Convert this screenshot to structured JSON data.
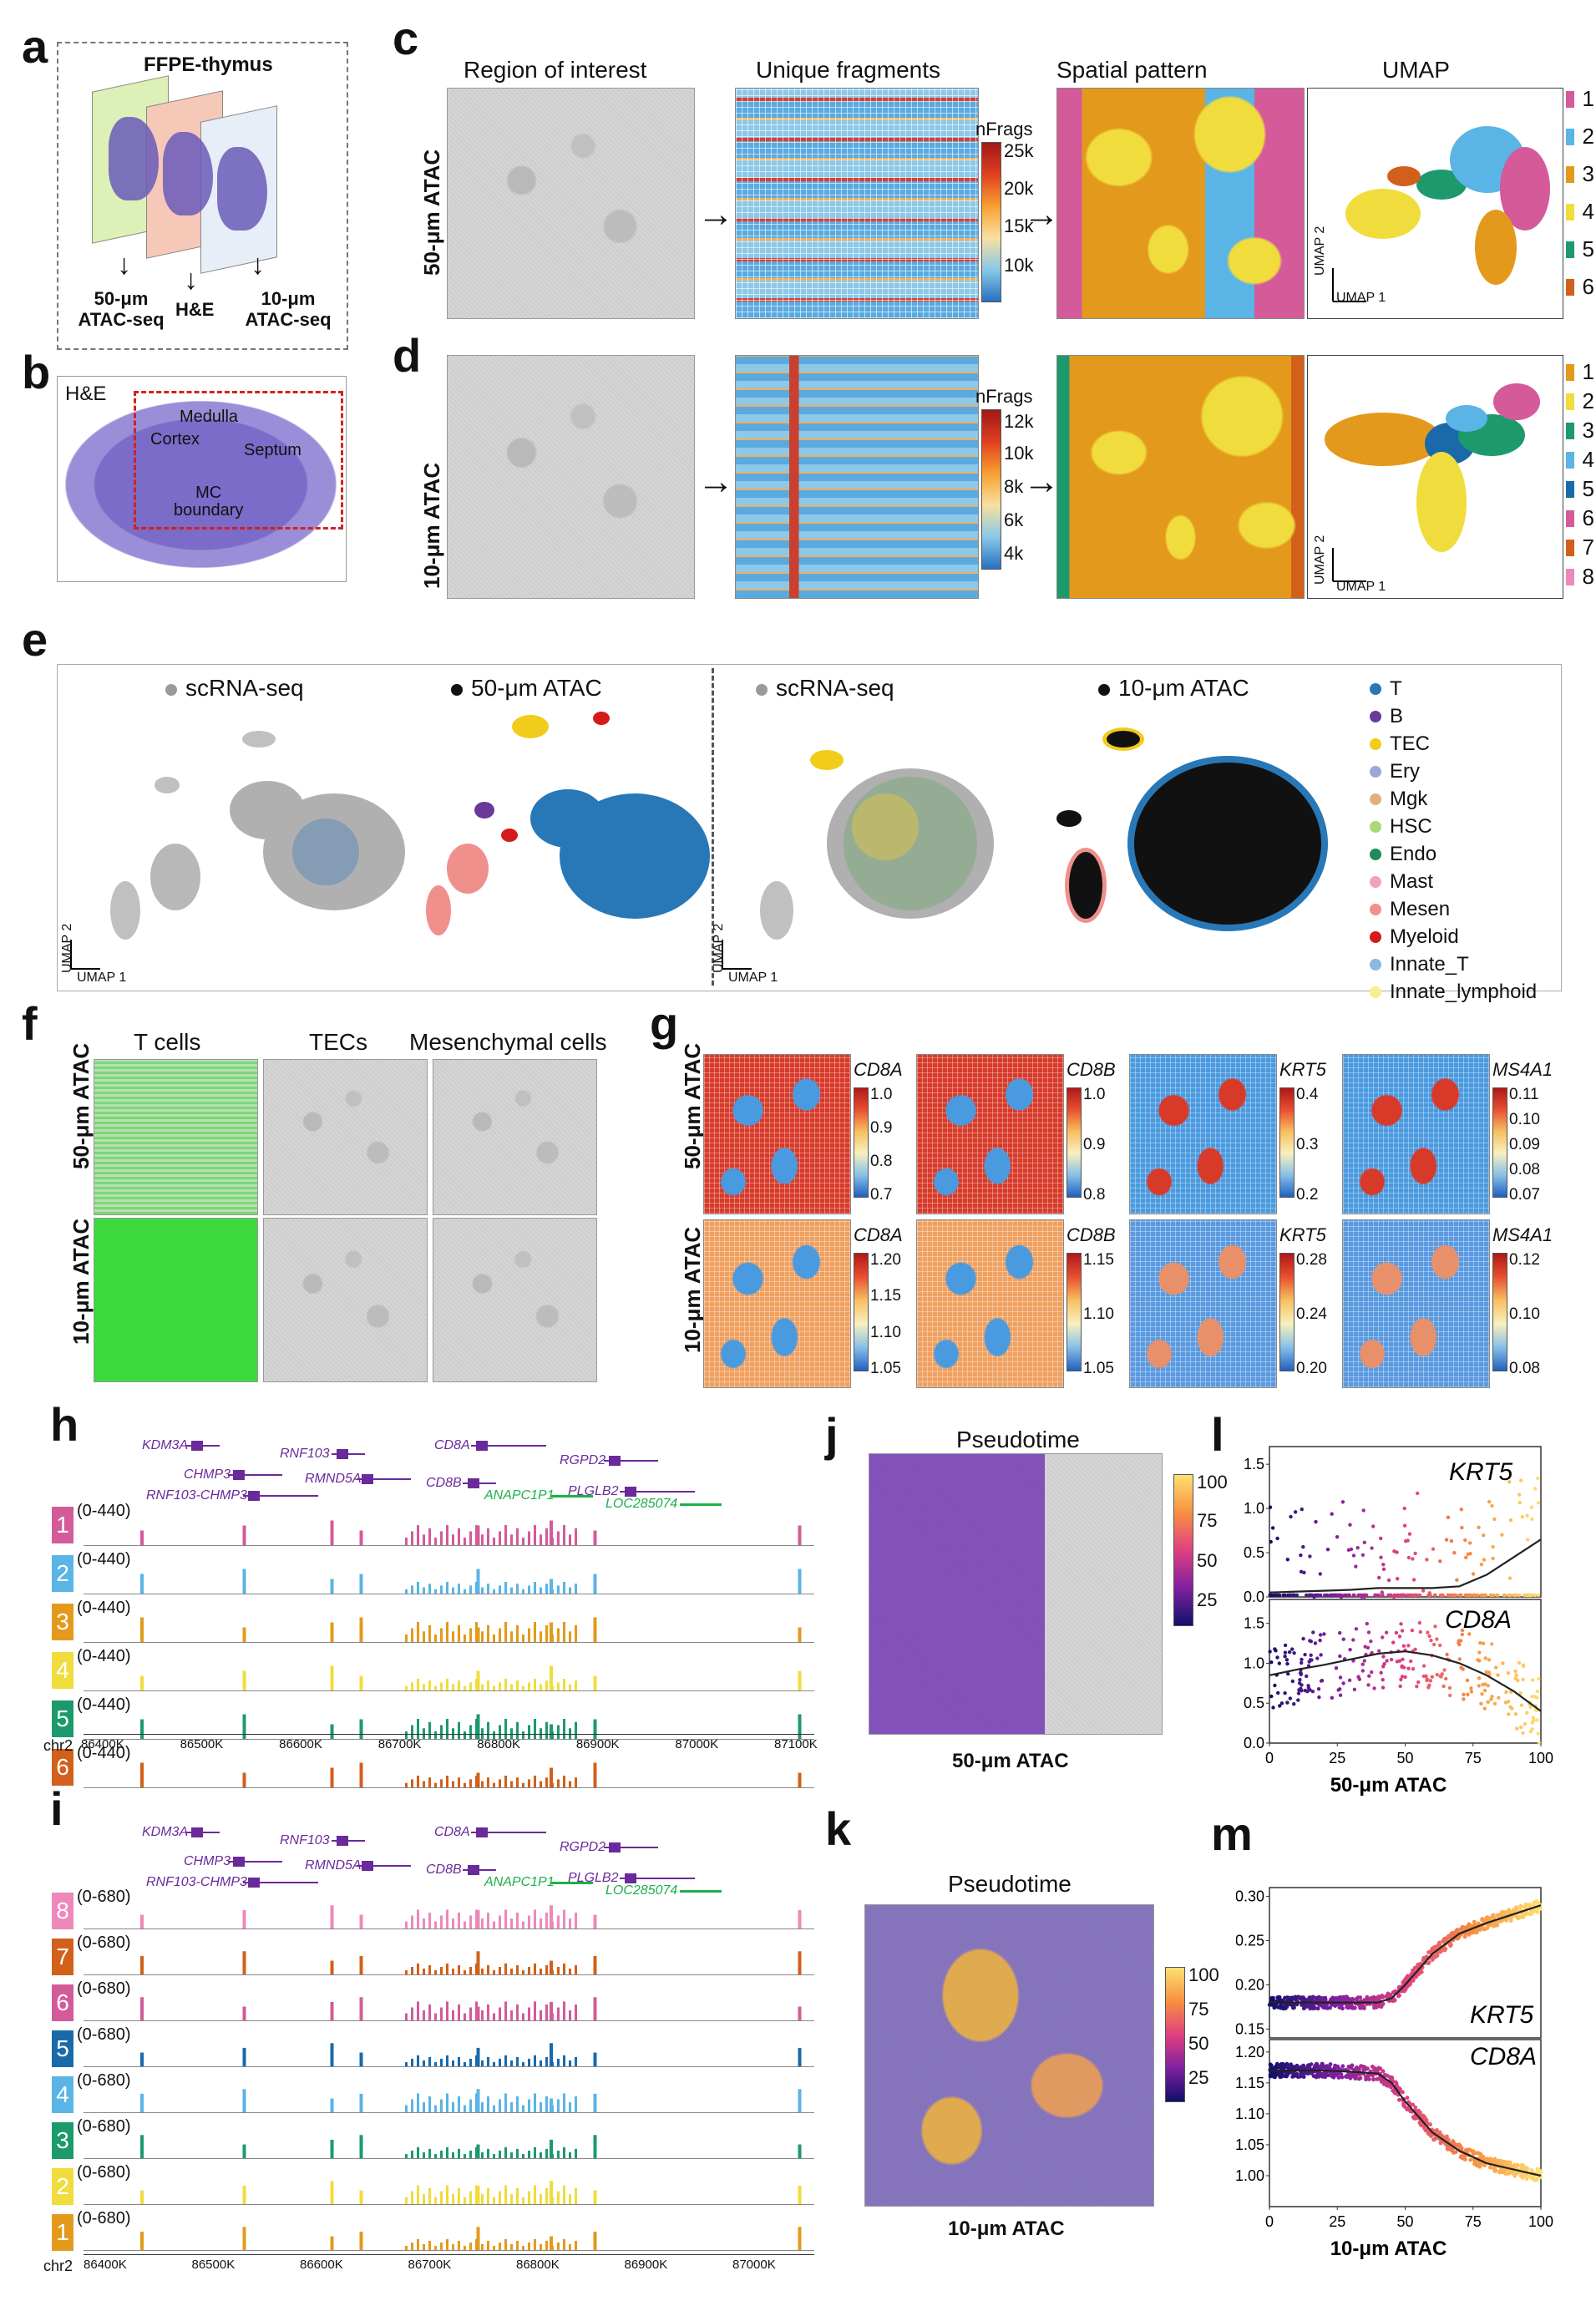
{
  "colors": {
    "c50": [
      "#d45a9a",
      "#5ab4e5",
      "#e39a1c",
      "#f0dc3c",
      "#1c9a6c",
      "#d2601a"
    ],
    "c10": [
      "#e39a1c",
      "#f0dc3c",
      "#1c9a6c",
      "#5ab4e5",
      "#1a6aaa",
      "#d45a9a",
      "#d2601a",
      "#ee88bb"
    ],
    "celltypes": [
      "#2878b8",
      "#6a3a9a",
      "#f2cc1a",
      "#9aa8d8",
      "#e0b080",
      "#a8d878",
      "#1c8c5c",
      "#f2a0c0",
      "#f0908c",
      "#d41a1a",
      "#8ab8e0",
      "#f4f08c"
    ],
    "gene_purple": "#6a2a9a",
    "gene_green": "#1cb04a",
    "spot_green": "#3cdc3c"
  },
  "panel_letters": {
    "a": "a",
    "b": "b",
    "c": "c",
    "d": "d",
    "e": "e",
    "f": "f",
    "g": "g",
    "h": "h",
    "i": "i",
    "j": "j",
    "k": "k",
    "l": "l",
    "m": "m"
  },
  "panel_a": {
    "title": "FFPE-thymus",
    "left": "50-μm\nATAC-seq",
    "mid": "H&E",
    "right": "10-μm\nATAC-seq"
  },
  "panel_b": {
    "label": "H&E",
    "regions": [
      "Medulla",
      "Cortex",
      "Septum",
      "MC\nboundary"
    ]
  },
  "panel_cd": {
    "col_titles": [
      "Region of interest",
      "Unique fragments",
      "Spatial pattern",
      "UMAP"
    ],
    "row_labels": [
      "50-μm ATAC",
      "10-μm ATAC"
    ],
    "nfrags_title": "nFrags",
    "c_ticks": [
      "25k",
      "20k",
      "15k",
      "10k"
    ],
    "d_ticks": [
      "12k",
      "10k",
      "8k",
      "6k",
      "4k"
    ],
    "umap_y": "UMAP 2",
    "umap_x": "UMAP 1",
    "c_clusters": [
      "1",
      "2",
      "3",
      "4",
      "5",
      "6"
    ],
    "d_clusters": [
      "1",
      "2",
      "3",
      "4",
      "5",
      "6",
      "7",
      "8"
    ]
  },
  "panel_e": {
    "titles": [
      "scRNA-seq",
      "50-μm ATAC",
      "scRNA-seq",
      "10-μm ATAC"
    ],
    "umap_y": "UMAP 2",
    "umap_x": "UMAP 1",
    "celltypes": [
      "T",
      "B",
      "TEC",
      "Ery",
      "Mgk",
      "HSC",
      "Endo",
      "Mast",
      "Mesen",
      "Myeloid",
      "Innate_T",
      "Innate_lymphoid"
    ]
  },
  "panel_f": {
    "cols": [
      "T cells",
      "TECs",
      "Mesenchymal cells"
    ],
    "rows": [
      "50-μm ATAC",
      "10-μm ATAC"
    ]
  },
  "panel_g": {
    "rows": [
      "50-μm ATAC",
      "10-μm ATAC"
    ],
    "genes": [
      "CD8A",
      "CD8B",
      "KRT5",
      "MS4A1"
    ],
    "ticks50": [
      [
        "1.0",
        "0.9",
        "0.8",
        "0.7"
      ],
      [
        "1.0",
        "0.9",
        "0.8"
      ],
      [
        "0.4",
        "0.3",
        "0.2"
      ],
      [
        "0.11",
        "0.10",
        "0.09",
        "0.08",
        "0.07"
      ]
    ],
    "ticks10": [
      [
        "1.20",
        "1.15",
        "1.10",
        "1.05"
      ],
      [
        "1.15",
        "1.10",
        "1.05"
      ],
      [
        "0.28",
        "0.24",
        "0.20"
      ],
      [
        "0.12",
        "0.10",
        "0.08"
      ]
    ]
  },
  "panel_h": {
    "genes_purple": [
      "KDM3A",
      "CHMP3",
      "RNF103-CHMP3",
      "RNF103",
      "RMND5A",
      "CD8A",
      "CD8B",
      "RGPD2",
      "PLGLB2"
    ],
    "genes_green": [
      "ANAPC1P1",
      "LOC285074"
    ],
    "tracks": [
      "1",
      "2",
      "3",
      "4",
      "5",
      "6"
    ],
    "range": "(0-440)",
    "chrom": "chr2",
    "axis": [
      "86400K",
      "86500K",
      "86600K",
      "86700K",
      "86800K",
      "86900K",
      "87000K",
      "87100K"
    ]
  },
  "panel_i": {
    "genes_purple": [
      "KDM3A",
      "CHMP3",
      "RNF103-CHMP3",
      "RNF103",
      "RMND5A",
      "CD8A",
      "CD8B",
      "RGPD2",
      "PLGLB2"
    ],
    "genes_green": [
      "ANAPC1P1",
      "LOC285074"
    ],
    "tracks": [
      "8",
      "7",
      "6",
      "5",
      "4",
      "3",
      "2",
      "1"
    ],
    "range": "(0-680)",
    "chrom": "chr2",
    "axis": [
      "86400K",
      "86500K",
      "86600K",
      "86700K",
      "86800K",
      "86900K",
      "87000K"
    ]
  },
  "panel_j": {
    "title": "Pseudotime",
    "caption": "50-μm ATAC",
    "ticks": [
      "100",
      "75",
      "50",
      "25"
    ]
  },
  "panel_k": {
    "title": "Pseudotime",
    "caption": "10-μm ATAC",
    "ticks": [
      "100",
      "75",
      "50",
      "25"
    ]
  },
  "chart_data": [
    {
      "type": "scatter",
      "id": "l_top",
      "gene": "KRT5",
      "xlim": [
        0,
        100
      ],
      "ylim": [
        0,
        1.7
      ],
      "yticks": [
        "1.5",
        "1.0",
        "0.5",
        "0.0"
      ],
      "trend_x": [
        0,
        10,
        20,
        30,
        40,
        50,
        60,
        70,
        80,
        90,
        100
      ],
      "trend_y": [
        0.05,
        0.06,
        0.07,
        0.08,
        0.1,
        0.1,
        0.1,
        0.12,
        0.25,
        0.45,
        0.65
      ]
    },
    {
      "type": "scatter",
      "id": "l_bot",
      "gene": "CD8A",
      "xlim": [
        0,
        100
      ],
      "ylim": [
        0,
        1.8
      ],
      "yticks": [
        "1.5",
        "1.0",
        "0.5",
        "0.0"
      ],
      "xticks": [
        "0",
        "25",
        "50",
        "75",
        "100"
      ],
      "xlabel": "50-μm ATAC",
      "trend_x": [
        0,
        10,
        20,
        30,
        40,
        50,
        60,
        70,
        80,
        90,
        100
      ],
      "trend_y": [
        0.85,
        0.92,
        0.98,
        1.05,
        1.12,
        1.15,
        1.1,
        1.0,
        0.85,
        0.65,
        0.4
      ]
    },
    {
      "type": "scatter",
      "id": "m_top",
      "gene": "KRT5",
      "xlim": [
        0,
        100
      ],
      "ylim": [
        0.14,
        0.31
      ],
      "yticks": [
        "0.30",
        "0.25",
        "0.20",
        "0.15"
      ],
      "trend_x": [
        0,
        10,
        20,
        30,
        40,
        45,
        50,
        60,
        70,
        80,
        90,
        100
      ],
      "trend_y": [
        0.18,
        0.18,
        0.18,
        0.18,
        0.18,
        0.185,
        0.2,
        0.235,
        0.258,
        0.27,
        0.28,
        0.29
      ]
    },
    {
      "type": "scatter",
      "id": "m_bot",
      "gene": "CD8A",
      "xlim": [
        0,
        100
      ],
      "ylim": [
        0.95,
        1.22
      ],
      "yticks": [
        "1.20",
        "1.15",
        "1.10",
        "1.05",
        "1.00"
      ],
      "xticks": [
        "0",
        "25",
        "50",
        "75",
        "100"
      ],
      "xlabel": "10-μm ATAC",
      "trend_x": [
        0,
        10,
        20,
        30,
        40,
        45,
        50,
        60,
        70,
        80,
        90,
        100
      ],
      "trend_y": [
        1.17,
        1.17,
        1.17,
        1.168,
        1.165,
        1.15,
        1.12,
        1.07,
        1.04,
        1.02,
        1.01,
        1.0
      ]
    }
  ]
}
